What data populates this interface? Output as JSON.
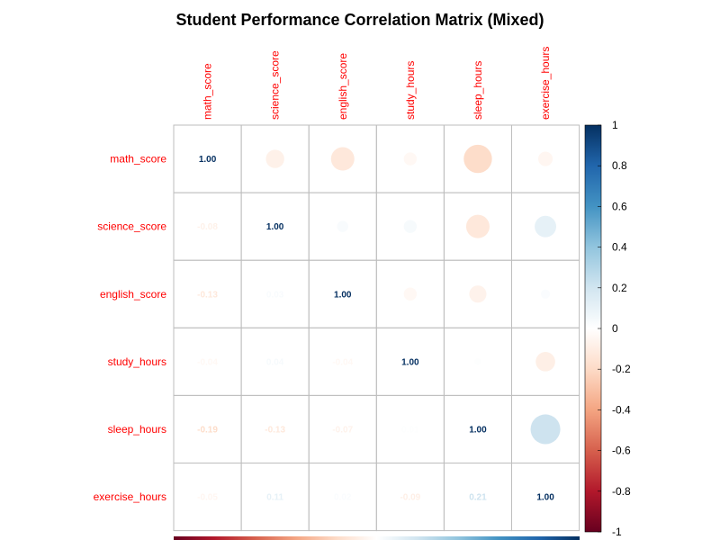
{
  "chart_data": {
    "type": "heatmap",
    "title": "Student Performance Correlation Matrix (Mixed)",
    "variables": [
      "math_score",
      "science_score",
      "english_score",
      "study_hours",
      "sleep_hours",
      "exercise_hours"
    ],
    "matrix": [
      [
        1.0,
        -0.08,
        -0.13,
        -0.04,
        -0.19,
        -0.05
      ],
      [
        -0.08,
        1.0,
        0.03,
        0.04,
        -0.13,
        0.11
      ],
      [
        -0.13,
        0.03,
        1.0,
        -0.04,
        -0.07,
        0.02
      ],
      [
        -0.04,
        0.04,
        -0.04,
        1.0,
        0.01,
        -0.09
      ],
      [
        -0.19,
        -0.13,
        -0.07,
        0.01,
        1.0,
        0.21
      ],
      [
        -0.05,
        0.11,
        0.02,
        -0.09,
        0.21,
        1.0
      ]
    ],
    "upper": "circle",
    "lower": "number",
    "colorbar": {
      "ticks": [
        "1",
        "0.8",
        "0.6",
        "0.4",
        "0.2",
        "0",
        "-0.2",
        "-0.4",
        "-0.6",
        "-0.8",
        "-1"
      ],
      "min": -1,
      "max": 1
    },
    "colors": {
      "neg_strong": "#67001f",
      "neg": "#b2182b",
      "neg_mid": "#d6604d",
      "neg_light": "#f4a582",
      "neg_pale": "#fddbc7",
      "neutral": "#ffffff",
      "pos_pale": "#d1e5f0",
      "pos_light": "#92c5de",
      "pos_mid": "#4393c3",
      "pos": "#2166ac",
      "pos_strong": "#053061",
      "label": "#ff0000",
      "grid": "#bebebe"
    }
  }
}
